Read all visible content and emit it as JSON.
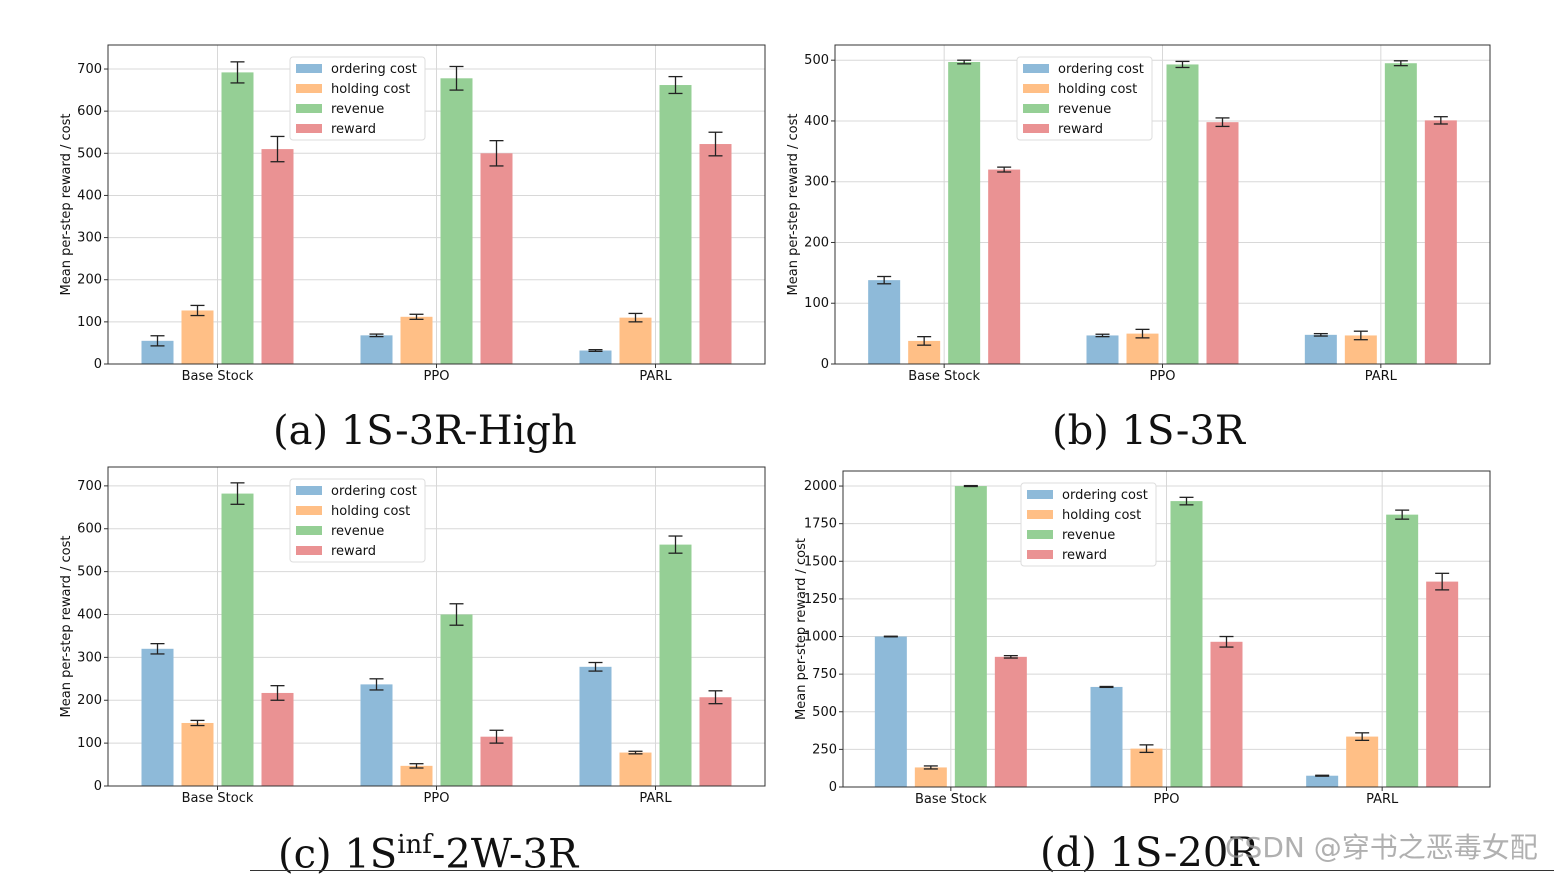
{
  "colors": {
    "ordering cost": "#8ebad9",
    "holding cost": "#ffbf86",
    "revenue": "#95cf95",
    "reward": "#ea9293"
  },
  "watermark": "CSDN @穿书之恶毒女配",
  "chart_data": [
    {
      "type": "bar",
      "caption": "(a) 1S-3R-High",
      "ylabel": "Mean per-step reward / cost",
      "ylim": [
        0,
        757
      ],
      "yticks": [
        0,
        100,
        200,
        300,
        400,
        500,
        600,
        700
      ],
      "grid": true,
      "legend": "top-center-left",
      "categories": [
        "Base Stock",
        "PPO",
        "PARL"
      ],
      "series": [
        {
          "name": "ordering cost",
          "values": [
            55,
            68,
            32
          ],
          "errors": [
            12,
            3,
            2
          ]
        },
        {
          "name": "holding cost",
          "values": [
            127,
            112,
            110
          ],
          "errors": [
            12,
            6,
            10
          ]
        },
        {
          "name": "revenue",
          "values": [
            692,
            678,
            662
          ],
          "errors": [
            25,
            28,
            20
          ]
        },
        {
          "name": "reward",
          "values": [
            510,
            500,
            522
          ],
          "errors": [
            30,
            30,
            28
          ]
        }
      ]
    },
    {
      "type": "bar",
      "caption": "(b) 1S-3R",
      "ylabel": "Mean per-step reward / cost",
      "ylim": [
        0,
        525
      ],
      "yticks": [
        0,
        100,
        200,
        300,
        400,
        500
      ],
      "grid": true,
      "legend": "top-center-left",
      "categories": [
        "Base Stock",
        "PPO",
        "PARL"
      ],
      "series": [
        {
          "name": "ordering cost",
          "values": [
            138,
            47,
            48
          ],
          "errors": [
            6,
            2,
            2
          ]
        },
        {
          "name": "holding cost",
          "values": [
            38,
            50,
            47
          ],
          "errors": [
            7,
            7,
            7
          ]
        },
        {
          "name": "revenue",
          "values": [
            497,
            493,
            495
          ],
          "errors": [
            3,
            5,
            4
          ]
        },
        {
          "name": "reward",
          "values": [
            320,
            398,
            401
          ],
          "errors": [
            4,
            7,
            6
          ]
        }
      ]
    },
    {
      "type": "bar",
      "caption_main": "(c) 1S",
      "caption_sup": "inf",
      "caption_rest": "-2W-3R",
      "ylabel": "Mean per-step reward / cost",
      "ylim": [
        0,
        744
      ],
      "yticks": [
        0,
        100,
        200,
        300,
        400,
        500,
        600,
        700
      ],
      "grid": true,
      "legend": "top-center-left",
      "categories": [
        "Base Stock",
        "PPO",
        "PARL"
      ],
      "series": [
        {
          "name": "ordering cost",
          "values": [
            320,
            237,
            278
          ],
          "errors": [
            12,
            13,
            10
          ]
        },
        {
          "name": "holding cost",
          "values": [
            147,
            47,
            78
          ],
          "errors": [
            6,
            5,
            3
          ]
        },
        {
          "name": "revenue",
          "values": [
            682,
            400,
            563
          ],
          "errors": [
            25,
            25,
            20
          ]
        },
        {
          "name": "reward",
          "values": [
            217,
            115,
            207
          ],
          "errors": [
            17,
            15,
            15
          ]
        }
      ]
    },
    {
      "type": "bar",
      "caption": "(d) 1S-20R",
      "ylabel": "Mean per-step reward / cost",
      "ylim": [
        0,
        2100
      ],
      "yticks": [
        0,
        250,
        500,
        750,
        1000,
        1250,
        1500,
        1750,
        2000
      ],
      "grid": true,
      "legend": "top-center-left",
      "categories": [
        "Base Stock",
        "PPO",
        "PARL"
      ],
      "series": [
        {
          "name": "ordering cost",
          "values": [
            1000,
            665,
            75
          ],
          "errors": [
            2,
            3,
            3
          ]
        },
        {
          "name": "holding cost",
          "values": [
            130,
            255,
            335
          ],
          "errors": [
            10,
            25,
            25
          ]
        },
        {
          "name": "revenue",
          "values": [
            2000,
            1900,
            1810
          ],
          "errors": [
            3,
            25,
            30
          ]
        },
        {
          "name": "reward",
          "values": [
            865,
            965,
            1365
          ],
          "errors": [
            8,
            35,
            55
          ]
        }
      ]
    }
  ]
}
